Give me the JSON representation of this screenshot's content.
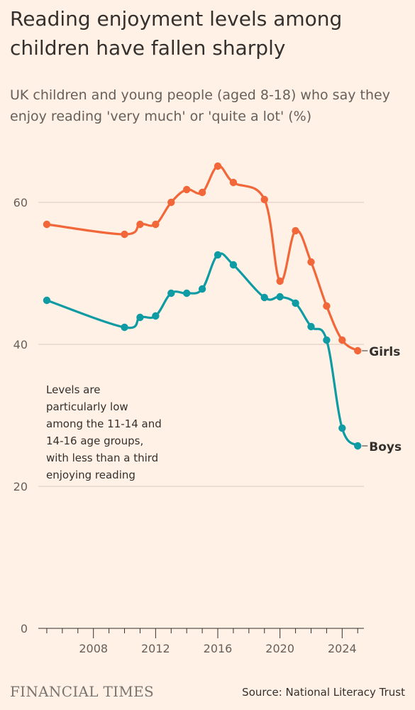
{
  "title": "Reading enjoyment levels among children have fallen sharply",
  "subtitle": "UK children and young people (aged 8-18) who say they enjoy reading 'very much' or 'quite a lot' (%)",
  "annotation": {
    "lines": [
      "Levels are",
      "particularly low",
      "among the 11-14 and",
      "14-16 age groups,",
      "with less than a third",
      "enjoying reading"
    ]
  },
  "footer": {
    "brand": "FINANCIAL TIMES",
    "source": "Source: National Literacy Trust"
  },
  "colors": {
    "girls": "#f2673a",
    "boys": "#0f9ba4",
    "background": "#fff1e5",
    "grid": "#d9c9bb"
  },
  "chart_data": {
    "type": "line",
    "x": [
      2005,
      2010,
      2011,
      2012,
      2013,
      2014,
      2015,
      2016,
      2017,
      2019,
      2020,
      2021,
      2022,
      2023,
      2024,
      2025
    ],
    "series": [
      {
        "name": "Girls",
        "values": [
          56.9,
          55.5,
          56.9,
          56.9,
          60.0,
          61.8,
          61.4,
          65.1,
          62.8,
          60.4,
          48.9,
          56.0,
          51.6,
          45.4,
          40.6,
          39.1
        ]
      },
      {
        "name": "Boys",
        "values": [
          46.2,
          42.4,
          43.8,
          44.0,
          47.2,
          47.2,
          47.8,
          52.6,
          51.2,
          46.6,
          46.7,
          45.8,
          42.5,
          40.6,
          28.2,
          25.7
        ]
      }
    ],
    "xlim": [
      2004.5,
      2025.4
    ],
    "ylim": [
      0,
      65
    ],
    "y_ticks": [
      0,
      20,
      40,
      60
    ],
    "x_tick_labels": [
      2008,
      2012,
      2016,
      2020,
      2024
    ],
    "x_minor_ticks": [
      2005,
      2006,
      2007,
      2008,
      2009,
      2010,
      2011,
      2012,
      2013,
      2014,
      2015,
      2016,
      2017,
      2018,
      2019,
      2020,
      2021,
      2022,
      2023,
      2024,
      2025
    ],
    "grid": true,
    "legend": "end-labels"
  }
}
